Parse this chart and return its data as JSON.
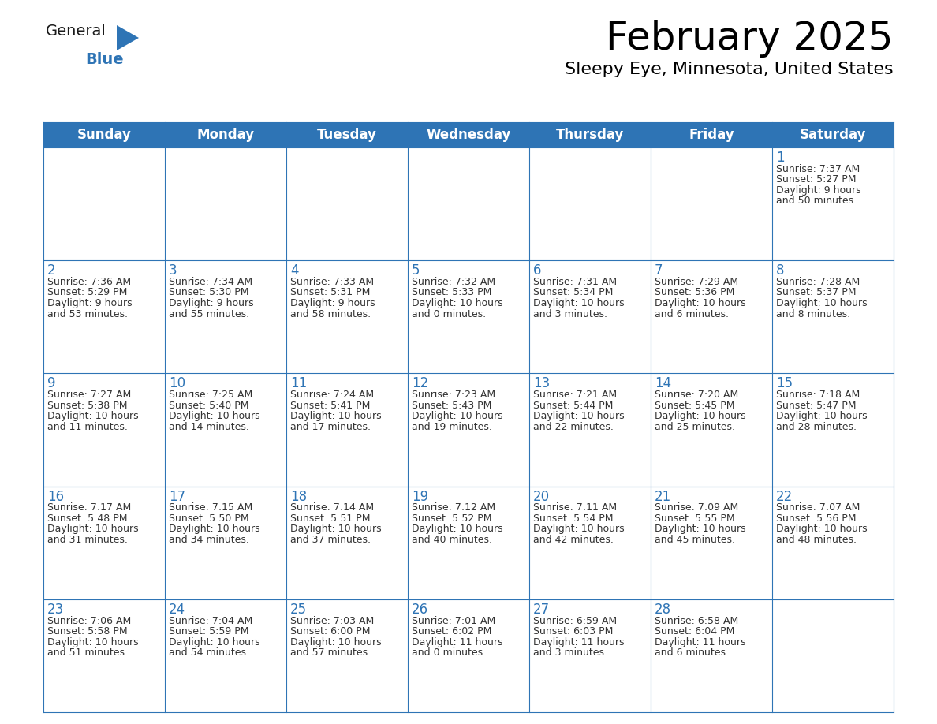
{
  "title": "February 2025",
  "subtitle": "Sleepy Eye, Minnesota, United States",
  "header_bg": "#2E74B5",
  "header_text_color": "#FFFFFF",
  "cell_bg": "#FFFFFF",
  "cell_alt_bg": "#F2F2F2",
  "cell_border_color": "#2E74B5",
  "day_number_color": "#2E74B5",
  "cell_text_color": "#333333",
  "days_of_week": [
    "Sunday",
    "Monday",
    "Tuesday",
    "Wednesday",
    "Thursday",
    "Friday",
    "Saturday"
  ],
  "calendar_data": [
    [
      null,
      null,
      null,
      null,
      null,
      null,
      {
        "day": "1",
        "sunrise": "7:37 AM",
        "sunset": "5:27 PM",
        "daylight": "9 hours\nand 50 minutes."
      }
    ],
    [
      {
        "day": "2",
        "sunrise": "7:36 AM",
        "sunset": "5:29 PM",
        "daylight": "9 hours\nand 53 minutes."
      },
      {
        "day": "3",
        "sunrise": "7:34 AM",
        "sunset": "5:30 PM",
        "daylight": "9 hours\nand 55 minutes."
      },
      {
        "day": "4",
        "sunrise": "7:33 AM",
        "sunset": "5:31 PM",
        "daylight": "9 hours\nand 58 minutes."
      },
      {
        "day": "5",
        "sunrise": "7:32 AM",
        "sunset": "5:33 PM",
        "daylight": "10 hours\nand 0 minutes."
      },
      {
        "day": "6",
        "sunrise": "7:31 AM",
        "sunset": "5:34 PM",
        "daylight": "10 hours\nand 3 minutes."
      },
      {
        "day": "7",
        "sunrise": "7:29 AM",
        "sunset": "5:36 PM",
        "daylight": "10 hours\nand 6 minutes."
      },
      {
        "day": "8",
        "sunrise": "7:28 AM",
        "sunset": "5:37 PM",
        "daylight": "10 hours\nand 8 minutes."
      }
    ],
    [
      {
        "day": "9",
        "sunrise": "7:27 AM",
        "sunset": "5:38 PM",
        "daylight": "10 hours\nand 11 minutes."
      },
      {
        "day": "10",
        "sunrise": "7:25 AM",
        "sunset": "5:40 PM",
        "daylight": "10 hours\nand 14 minutes."
      },
      {
        "day": "11",
        "sunrise": "7:24 AM",
        "sunset": "5:41 PM",
        "daylight": "10 hours\nand 17 minutes."
      },
      {
        "day": "12",
        "sunrise": "7:23 AM",
        "sunset": "5:43 PM",
        "daylight": "10 hours\nand 19 minutes."
      },
      {
        "day": "13",
        "sunrise": "7:21 AM",
        "sunset": "5:44 PM",
        "daylight": "10 hours\nand 22 minutes."
      },
      {
        "day": "14",
        "sunrise": "7:20 AM",
        "sunset": "5:45 PM",
        "daylight": "10 hours\nand 25 minutes."
      },
      {
        "day": "15",
        "sunrise": "7:18 AM",
        "sunset": "5:47 PM",
        "daylight": "10 hours\nand 28 minutes."
      }
    ],
    [
      {
        "day": "16",
        "sunrise": "7:17 AM",
        "sunset": "5:48 PM",
        "daylight": "10 hours\nand 31 minutes."
      },
      {
        "day": "17",
        "sunrise": "7:15 AM",
        "sunset": "5:50 PM",
        "daylight": "10 hours\nand 34 minutes."
      },
      {
        "day": "18",
        "sunrise": "7:14 AM",
        "sunset": "5:51 PM",
        "daylight": "10 hours\nand 37 minutes."
      },
      {
        "day": "19",
        "sunrise": "7:12 AM",
        "sunset": "5:52 PM",
        "daylight": "10 hours\nand 40 minutes."
      },
      {
        "day": "20",
        "sunrise": "7:11 AM",
        "sunset": "5:54 PM",
        "daylight": "10 hours\nand 42 minutes."
      },
      {
        "day": "21",
        "sunrise": "7:09 AM",
        "sunset": "5:55 PM",
        "daylight": "10 hours\nand 45 minutes."
      },
      {
        "day": "22",
        "sunrise": "7:07 AM",
        "sunset": "5:56 PM",
        "daylight": "10 hours\nand 48 minutes."
      }
    ],
    [
      {
        "day": "23",
        "sunrise": "7:06 AM",
        "sunset": "5:58 PM",
        "daylight": "10 hours\nand 51 minutes."
      },
      {
        "day": "24",
        "sunrise": "7:04 AM",
        "sunset": "5:59 PM",
        "daylight": "10 hours\nand 54 minutes."
      },
      {
        "day": "25",
        "sunrise": "7:03 AM",
        "sunset": "6:00 PM",
        "daylight": "10 hours\nand 57 minutes."
      },
      {
        "day": "26",
        "sunrise": "7:01 AM",
        "sunset": "6:02 PM",
        "daylight": "11 hours\nand 0 minutes."
      },
      {
        "day": "27",
        "sunrise": "6:59 AM",
        "sunset": "6:03 PM",
        "daylight": "11 hours\nand 3 minutes."
      },
      {
        "day": "28",
        "sunrise": "6:58 AM",
        "sunset": "6:04 PM",
        "daylight": "11 hours\nand 6 minutes."
      },
      null
    ]
  ],
  "logo_general_color": "#1a1a1a",
  "logo_blue_color": "#2E74B5",
  "logo_triangle_color": "#2E74B5",
  "title_fontsize": 36,
  "subtitle_fontsize": 16,
  "header_fontsize": 12,
  "day_num_fontsize": 12,
  "cell_fontsize": 9
}
